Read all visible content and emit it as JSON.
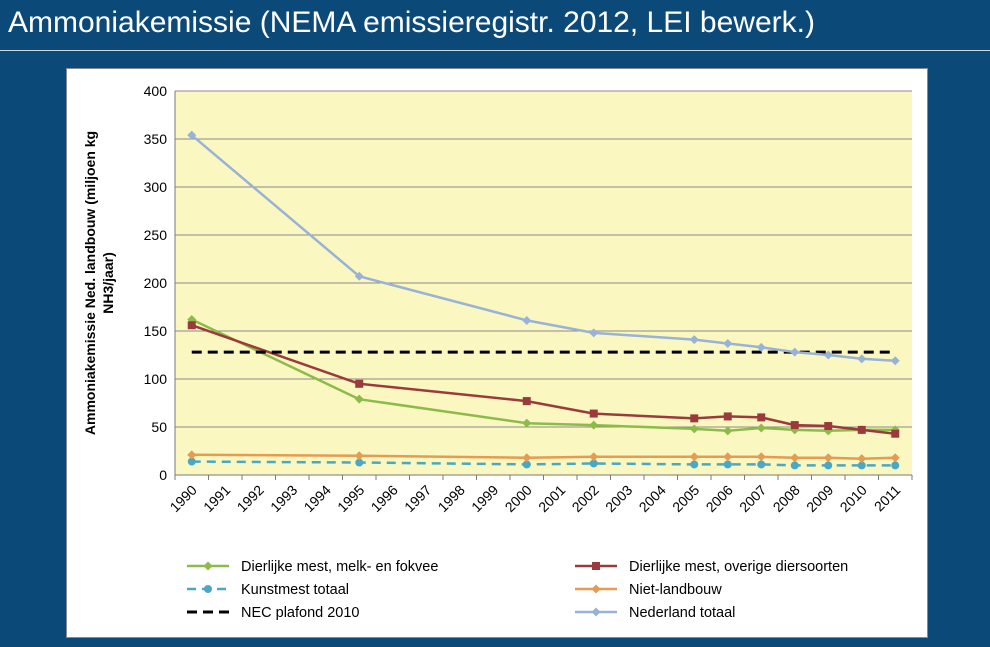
{
  "slide": {
    "title": "Ammoniakemissie (NEMA emissieregistr. 2012, LEI bewerk.)"
  },
  "chart_data": {
    "type": "line",
    "ylabel_lines": [
      "Ammoniakemissie Ned.  landbouw (miljoen kg",
      "NH3/jaar)"
    ],
    "xlabel": "",
    "ylim": [
      0,
      400
    ],
    "yticks": [
      0,
      50,
      100,
      150,
      200,
      250,
      300,
      350,
      400
    ],
    "categories": [
      "1990",
      "1991",
      "1992",
      "1993",
      "1994",
      "1995",
      "1996",
      "1997",
      "1998",
      "1999",
      "2000",
      "2001",
      "2002",
      "2003",
      "2004",
      "2005",
      "2006",
      "2007",
      "2008",
      "2009",
      "2010",
      "2011"
    ],
    "grid": "horizontal",
    "legend_position": "bottom",
    "background_color": "#faf8c0",
    "series": [
      {
        "name": "Dierlijke mest, melk- en fokvee",
        "color": "#8dbb4b",
        "dash": "solid",
        "marker": "diamond",
        "x": [
          "1990",
          "1995",
          "2000",
          "2002",
          "2005",
          "2006",
          "2007",
          "2008",
          "2009",
          "2010",
          "2011"
        ],
        "values": [
          162,
          79,
          54,
          52,
          48,
          46,
          49,
          47,
          46,
          47,
          47
        ]
      },
      {
        "name": "Dierlijke mest, overige diersoorten",
        "color": "#9b3a3d",
        "dash": "solid",
        "marker": "square",
        "x": [
          "1990",
          "1995",
          "2000",
          "2002",
          "2005",
          "2006",
          "2007",
          "2008",
          "2009",
          "2010",
          "2011"
        ],
        "values": [
          156,
          95,
          77,
          64,
          59,
          61,
          60,
          52,
          51,
          47,
          43
        ]
      },
      {
        "name": "Kunstmest totaal",
        "color": "#4aa8c4",
        "dash": "dashed",
        "marker": "circle",
        "x": [
          "1990",
          "1995",
          "2000",
          "2002",
          "2005",
          "2006",
          "2007",
          "2008",
          "2009",
          "2010",
          "2011"
        ],
        "values": [
          14,
          13,
          11,
          12,
          11,
          11,
          11,
          10,
          10,
          10,
          10
        ]
      },
      {
        "name": "Niet-landbouw",
        "color": "#e59b52",
        "dash": "solid",
        "marker": "diamond",
        "x": [
          "1990",
          "1995",
          "2000",
          "2002",
          "2005",
          "2006",
          "2007",
          "2008",
          "2009",
          "2010",
          "2011"
        ],
        "values": [
          21,
          20,
          18,
          19,
          19,
          19,
          19,
          18,
          18,
          17,
          18
        ]
      },
      {
        "name": "NEC plafond 2010",
        "color": "#000000",
        "dash": "heavy-dashed",
        "marker": "none",
        "x": [
          "1990",
          "2011"
        ],
        "values": [
          128,
          128
        ]
      },
      {
        "name": "Nederland totaal",
        "color": "#98b2d8",
        "dash": "solid",
        "marker": "diamond",
        "x": [
          "1990",
          "1995",
          "2000",
          "2002",
          "2005",
          "2006",
          "2007",
          "2008",
          "2009",
          "2010",
          "2011"
        ],
        "values": [
          354,
          207,
          161,
          148,
          141,
          137,
          133,
          128,
          125,
          121,
          119
        ]
      }
    ]
  }
}
